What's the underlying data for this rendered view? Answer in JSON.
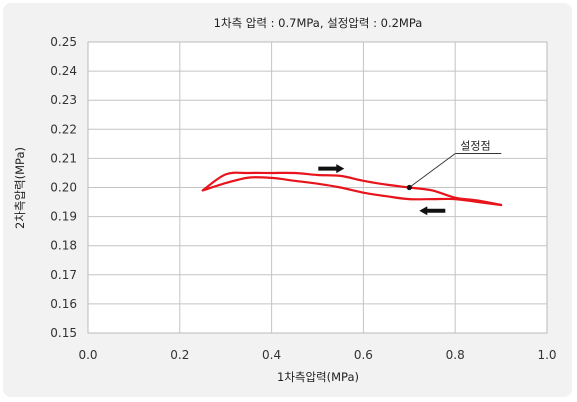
{
  "chart_data": {
    "type": "line",
    "title": "1차측 압력 : 0.7MPa, 설정압력 : 0.2MPa",
    "xlabel": "1차측압력(MPa)",
    "ylabel": "2차측압력(MPa)",
    "xlim": [
      0.0,
      1.0
    ],
    "ylim": [
      0.15,
      0.25
    ],
    "x_ticks": [
      "0.0",
      "0.2",
      "0.4",
      "0.6",
      "0.8",
      "1.0"
    ],
    "y_ticks": [
      "0.25",
      "0.24",
      "0.23",
      "0.22",
      "0.21",
      "0.20",
      "0.19",
      "0.18",
      "0.17",
      "0.16",
      "0.15"
    ],
    "grid": true,
    "series_color": "#e8141c",
    "series": [
      {
        "x": [
          0.25,
          0.3,
          0.35,
          0.4,
          0.45,
          0.5,
          0.55,
          0.6,
          0.65,
          0.7,
          0.75,
          0.8,
          0.85,
          0.9
        ],
        "y": [
          0.199,
          0.2045,
          0.205,
          0.205,
          0.205,
          0.2043,
          0.204,
          0.2023,
          0.201,
          0.2,
          0.199,
          0.1965,
          0.1955,
          0.194
        ]
      },
      {
        "x": [
          0.9,
          0.85,
          0.8,
          0.75,
          0.7,
          0.65,
          0.6,
          0.55,
          0.5,
          0.45,
          0.4,
          0.35,
          0.3,
          0.25
        ],
        "y": [
          0.194,
          0.195,
          0.196,
          0.196,
          0.196,
          0.197,
          0.1982,
          0.2,
          0.2013,
          0.2023,
          0.2033,
          0.2034,
          0.2015,
          0.199
        ]
      }
    ],
    "annotations": [
      {
        "text": "설정점",
        "x": 0.7,
        "y": 0.2
      }
    ],
    "arrows": [
      {
        "direction": "right",
        "x": 0.53,
        "y": 0.2065
      },
      {
        "direction": "left",
        "x": 0.75,
        "y": 0.192
      }
    ]
  }
}
